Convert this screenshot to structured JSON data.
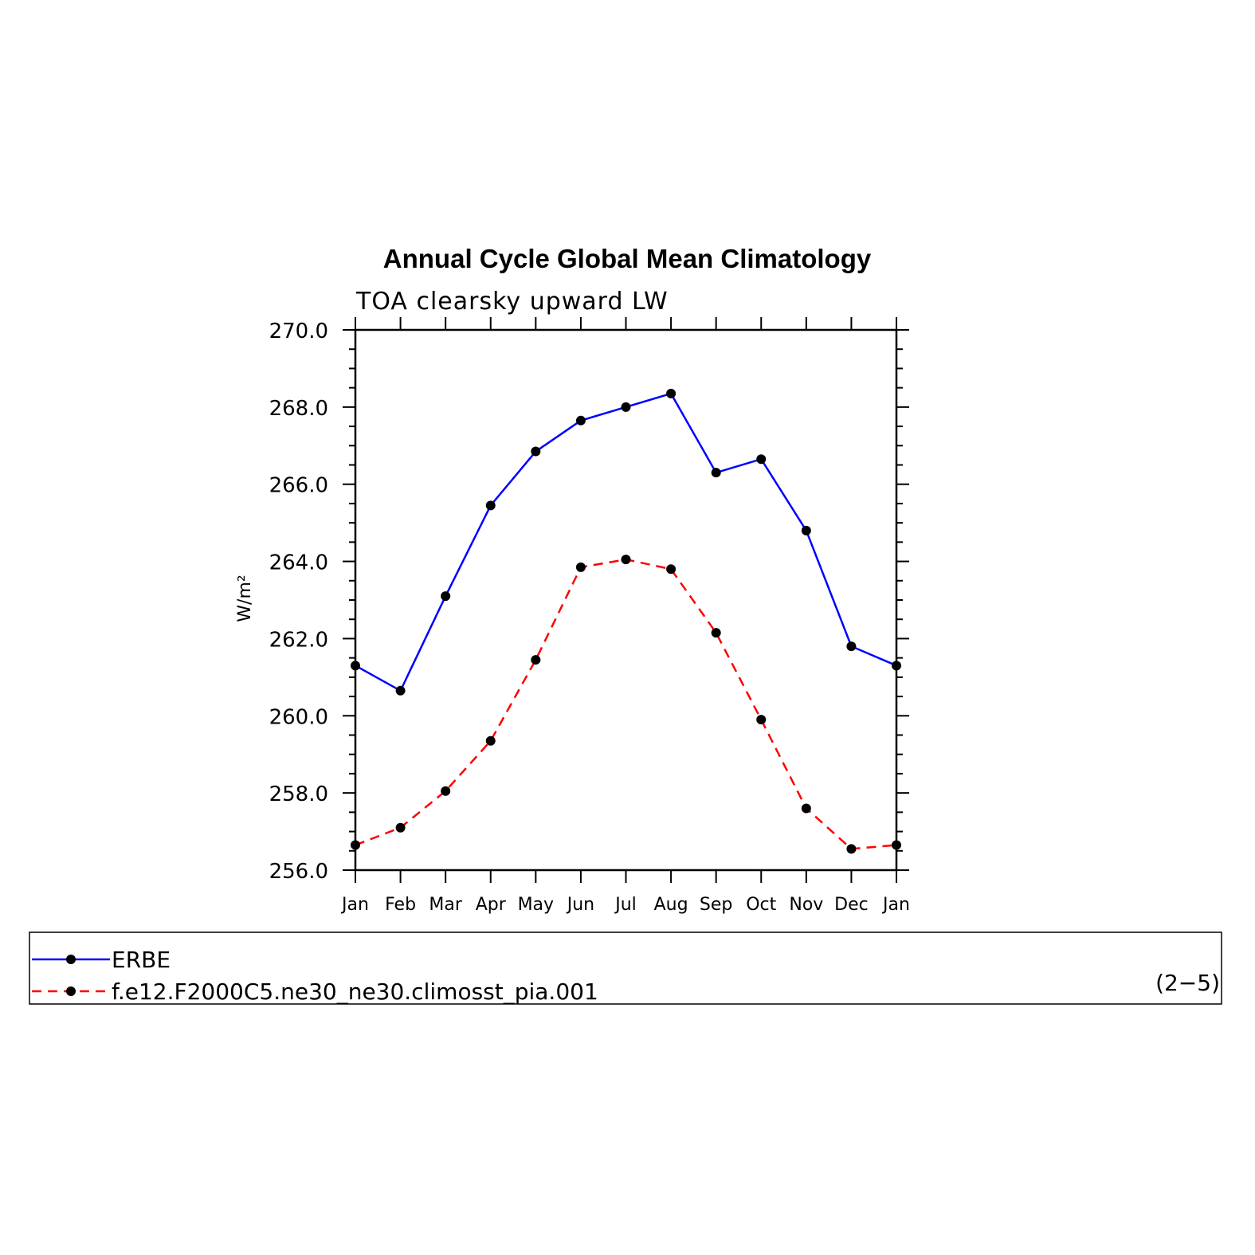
{
  "chart_data": {
    "type": "line",
    "title": "Annual Cycle Global Mean Climatology",
    "subtitle": "TOA clearsky upward LW",
    "ylabel": "W/m²",
    "xlabel": "",
    "categories": [
      "Jan",
      "Feb",
      "Mar",
      "Apr",
      "May",
      "Jun",
      "Jul",
      "Aug",
      "Sep",
      "Oct",
      "Nov",
      "Dec",
      "Jan"
    ],
    "ylim": [
      256.0,
      270.0
    ],
    "yticks": [
      "256.0",
      "258.0",
      "260.0",
      "262.0",
      "264.0",
      "266.0",
      "268.0",
      "270.0"
    ],
    "series": [
      {
        "name": "ERBE",
        "color": "#0000ff",
        "dash": "solid",
        "values": [
          261.3,
          260.65,
          263.1,
          265.45,
          266.85,
          267.65,
          268.0,
          268.35,
          266.3,
          266.65,
          264.8,
          261.8,
          261.3
        ]
      },
      {
        "name": "f.e12.F2000C5.ne30_ne30.climosst_pia.001",
        "color": "#ff0000",
        "dash": "dashed",
        "values": [
          256.65,
          257.1,
          258.05,
          259.35,
          261.45,
          263.85,
          264.05,
          263.8,
          262.15,
          259.9,
          257.6,
          256.55,
          256.65
        ]
      }
    ],
    "grid": false,
    "legend_position": "bottom",
    "panel_label": "(2−5)"
  }
}
